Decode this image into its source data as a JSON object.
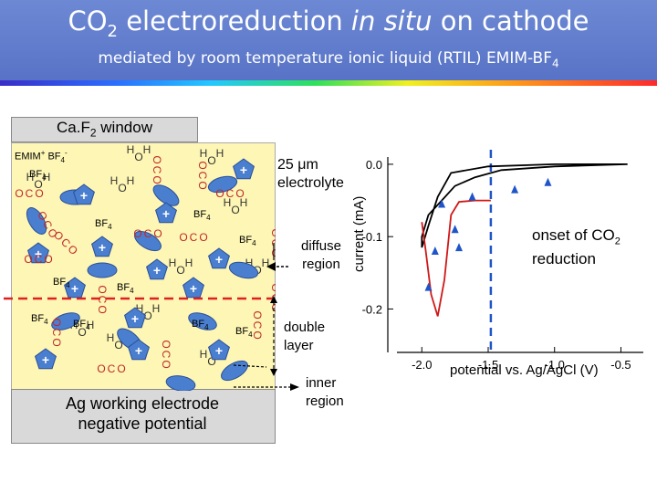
{
  "header": {
    "title_pre": "CO",
    "title_sub": "2",
    "title_post": " electroreduction ",
    "title_em": "in situ",
    "title_end": " on cathode",
    "subtitle": "mediated by room temperature ionic liquid (RTIL) EMIM-BF",
    "subtitle_sub": "4"
  },
  "colors": {
    "header_blue": "#5b77c8",
    "electrolyte": "#fdf6b4",
    "electrode_gray": "#d9d9d9",
    "cation_blue": "#4a7fd0",
    "co2_red": "#c0282a",
    "curve_black": "#000000",
    "curve_red": "#d01818",
    "marker_blue": "#1f55c8",
    "divider_red": "#e02020",
    "onset_blue": "#1f55c8"
  },
  "icons": {
    "cation": "blue-pentagon-with-plus",
    "anion": "blue-ellipse",
    "co2": "red-o-c-o-molecule",
    "water": "h-o-h-molecule"
  },
  "diagram": {
    "window_label": "Ca.F",
    "window_sub": "2",
    "window_post": " window",
    "ions_pre": "EMIM",
    "ions_plus": "+",
    "ions_mid": " BF",
    "ions_sub": "4",
    "ions_minus": "-",
    "electrode_line1": "Ag working electrode",
    "electrode_line2": "negative potential",
    "thickness_pre": "25 ",
    "thickness_unit": "μm",
    "thickness_line2": "electrolyte",
    "diffuse_line1": "diffuse",
    "diffuse_line2": "region",
    "double_line1": "double",
    "double_line2": "layer",
    "inner_line1": "inner",
    "inner_line2": "region",
    "bf4_base": "BF",
    "bf4_sub": "4",
    "o": "O",
    "c": "C",
    "h": "H"
  },
  "chart_data": {
    "type": "line",
    "xlabel": "potential vs. Ag/AgCl (V)",
    "ylabel": "current (mA)",
    "xlim": [
      -2.05,
      -0.4
    ],
    "ylim": [
      -0.26,
      0.01
    ],
    "x_ticks": [
      "-2.0",
      "-1.5",
      "-1.0",
      "-0.5"
    ],
    "y_ticks": [
      "0.0",
      "-0.1",
      "-0.2"
    ],
    "x_tick_values": [
      -2.0,
      -1.5,
      -1.0,
      -0.5
    ],
    "y_tick_values": [
      0.0,
      -0.1,
      -0.2
    ],
    "onset_potential": -1.48,
    "onset_label_line1": "onset of CO",
    "onset_label_sub": "2",
    "onset_label_line2": "reduction",
    "series": [
      {
        "color": "#000000",
        "points": [
          [
            -0.45,
            0.0
          ],
          [
            -1.0,
            -0.003
          ],
          [
            -1.4,
            -0.008
          ],
          [
            -1.6,
            -0.018
          ],
          [
            -1.75,
            -0.03
          ],
          [
            -1.85,
            -0.05
          ],
          [
            -1.95,
            -0.07
          ],
          [
            -2.0,
            -0.1
          ],
          [
            -2.0,
            -0.115
          ],
          [
            -1.95,
            -0.085
          ],
          [
            -1.88,
            -0.045
          ],
          [
            -1.78,
            -0.012
          ],
          [
            -1.5,
            -0.003
          ],
          [
            -1.0,
            0.0
          ],
          [
            -0.45,
            0.0
          ]
        ]
      },
      {
        "color": "#d01818",
        "points": [
          [
            -1.48,
            -0.05
          ],
          [
            -1.6,
            -0.05
          ],
          [
            -1.72,
            -0.052
          ],
          [
            -1.78,
            -0.07
          ],
          [
            -1.83,
            -0.16
          ],
          [
            -1.88,
            -0.21
          ],
          [
            -1.93,
            -0.18
          ],
          [
            -1.97,
            -0.12
          ],
          [
            -2.0,
            -0.08
          ]
        ]
      }
    ],
    "arrows": [
      [
        -1.05,
        -0.025
      ],
      [
        -1.3,
        -0.035
      ],
      [
        -1.62,
        -0.045
      ],
      [
        -1.85,
        -0.055
      ],
      [
        -1.9,
        -0.12
      ],
      [
        -1.95,
        -0.17
      ],
      [
        -1.75,
        -0.09
      ],
      [
        -1.72,
        -0.115
      ]
    ]
  }
}
